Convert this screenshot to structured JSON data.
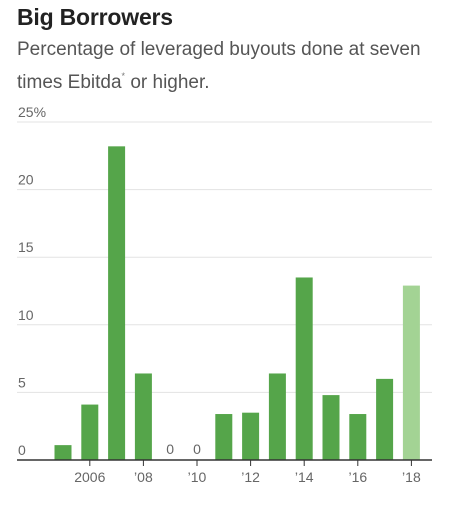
{
  "header": {
    "title": "Big Borrowers",
    "subtitle": "Percentage of leveraged buyouts done at seven times Ebitda",
    "subtitle_mark": "*",
    "subtitle_tail": " or higher."
  },
  "colors": {
    "bar": "#55a54a",
    "bar_highlight": "#a3d394",
    "grid": "#e3e3e3",
    "axis": "#333333"
  },
  "chart_data": {
    "type": "bar",
    "title": "Big Borrowers",
    "subtitle": "Percentage of leveraged buyouts done at seven times Ebitda* or higher.",
    "categories": [
      "2005",
      "2006",
      "2007",
      "2008",
      "2009",
      "2010",
      "2011",
      "2012",
      "2013",
      "2014",
      "2015",
      "2016",
      "2017",
      "2018"
    ],
    "values": [
      1.1,
      4.1,
      23.2,
      6.4,
      0,
      0,
      3.4,
      3.5,
      6.4,
      13.5,
      4.8,
      3.4,
      6.0,
      12.9
    ],
    "highlighted": [
      "2018"
    ],
    "zero_labels": [
      "0",
      "0"
    ],
    "ylim": [
      0,
      25
    ],
    "yticks": [
      0,
      5,
      10,
      15,
      20,
      25
    ],
    "ytick_labels": [
      "0",
      "5",
      "10",
      "15",
      "20",
      "25%"
    ],
    "xtick_labels": [
      {
        "category": "2006",
        "label": "2006"
      },
      {
        "category": "2008",
        "label": "’08"
      },
      {
        "category": "2010",
        "label": "’10"
      },
      {
        "category": "2012",
        "label": "’12"
      },
      {
        "category": "2014",
        "label": "’14"
      },
      {
        "category": "2016",
        "label": "’16"
      },
      {
        "category": "2018",
        "label": "’18"
      }
    ],
    "xlabel": "",
    "ylabel": "",
    "grid": true,
    "legend": false
  }
}
